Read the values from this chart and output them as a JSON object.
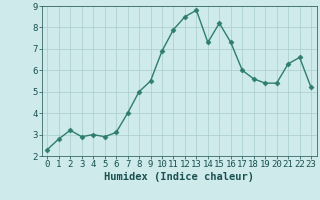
{
  "x_values": [
    0,
    1,
    2,
    3,
    4,
    5,
    6,
    7,
    8,
    9,
    10,
    11,
    12,
    13,
    14,
    15,
    16,
    17,
    18,
    19,
    20,
    21,
    22,
    23
  ],
  "y_values": [
    2.3,
    2.8,
    3.2,
    2.9,
    3.0,
    2.9,
    3.1,
    4.0,
    5.0,
    5.5,
    6.9,
    7.9,
    8.5,
    8.8,
    7.3,
    8.2,
    7.3,
    6.0,
    5.6,
    5.4,
    5.4,
    6.3,
    6.6,
    5.2
  ],
  "line_color": "#2e7d6e",
  "marker": "D",
  "marker_size": 2.5,
  "bg_color": "#ceeaea",
  "grid_color": "#aacccc",
  "xlabel": "Humidex (Indice chaleur)",
  "xlim": [
    -0.5,
    23.5
  ],
  "ylim": [
    2,
    9
  ],
  "yticks": [
    2,
    3,
    4,
    5,
    6,
    7,
    8,
    9
  ],
  "xticks": [
    0,
    1,
    2,
    3,
    4,
    5,
    6,
    7,
    8,
    9,
    10,
    11,
    12,
    13,
    14,
    15,
    16,
    17,
    18,
    19,
    20,
    21,
    22,
    23
  ],
  "font_color": "#1a5050",
  "tick_fontsize": 6.5,
  "label_fontsize": 7.5,
  "line_width": 1.0
}
